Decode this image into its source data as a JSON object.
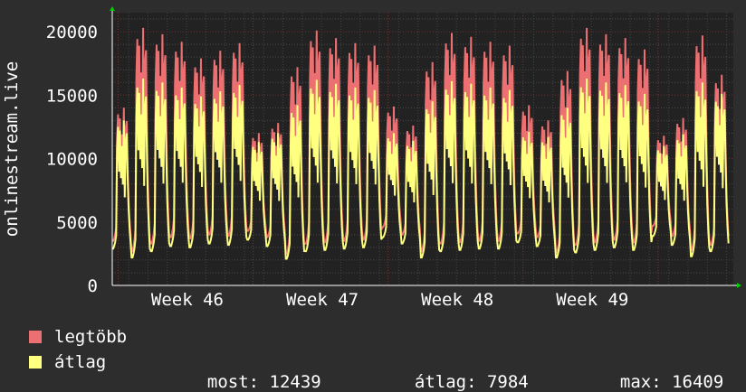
{
  "chart_data": {
    "type": "line",
    "ylabel": "onlinestream.live",
    "y_ticks": [
      0,
      5000,
      10000,
      15000,
      20000
    ],
    "ylim": [
      0,
      21500
    ],
    "x_tick_labels": [
      "Week 46",
      "Week 47",
      "Week 48",
      "Week 49"
    ],
    "grid": true,
    "colors": {
      "background": "#2d2d2d",
      "plot": "#222222",
      "max_series": "#ec6f71",
      "avg_series": "#ffff80",
      "axis_arrow": "#00cc00"
    },
    "series": [
      {
        "name": "legtöbb",
        "color": "#ec6f71",
        "days": [
          {
            "night": 3500,
            "peak": 14000
          },
          {
            "night": 2700,
            "peak": 20300
          },
          {
            "night": 3300,
            "peak": 19800
          },
          {
            "night": 3800,
            "peak": 19200
          },
          {
            "night": 3700,
            "peak": 17900
          },
          {
            "night": 4000,
            "peak": 18500
          },
          {
            "night": 3900,
            "peak": 19100
          },
          {
            "night": 4300,
            "peak": 12000
          },
          {
            "night": 3800,
            "peak": 12800
          },
          {
            "night": 2500,
            "peak": 17200
          },
          {
            "night": 3300,
            "peak": 20100
          },
          {
            "night": 3400,
            "peak": 19500
          },
          {
            "night": 3500,
            "peak": 19100
          },
          {
            "night": 3600,
            "peak": 18900
          },
          {
            "night": 4600,
            "peak": 14100
          },
          {
            "night": 4000,
            "peak": 12600
          },
          {
            "night": 2700,
            "peak": 17600
          },
          {
            "night": 3300,
            "peak": 19900
          },
          {
            "night": 3400,
            "peak": 19600
          },
          {
            "night": 3500,
            "peak": 19200
          },
          {
            "night": 3500,
            "peak": 18900
          },
          {
            "night": 4100,
            "peak": 14200
          },
          {
            "night": 3800,
            "peak": 13000
          },
          {
            "night": 2600,
            "peak": 16900
          },
          {
            "night": 3200,
            "peak": 20300
          },
          {
            "night": 3400,
            "peak": 19800
          },
          {
            "night": 3600,
            "peak": 19500
          },
          {
            "night": 3400,
            "peak": 18600
          },
          {
            "night": 4700,
            "peak": 11800
          },
          {
            "night": 3900,
            "peak": 13200
          },
          {
            "night": 2800,
            "peak": 19700
          },
          {
            "night": 3200,
            "peak": 16600
          }
        ]
      },
      {
        "name": "átlag",
        "color": "#ffff80",
        "days": [
          {
            "night": 2900,
            "peak": 13000
          },
          {
            "night": 2200,
            "peak": 16300
          },
          {
            "night": 2700,
            "peak": 16000
          },
          {
            "night": 3100,
            "peak": 15600
          },
          {
            "night": 3000,
            "peak": 14900
          },
          {
            "night": 3300,
            "peak": 15300
          },
          {
            "night": 3200,
            "peak": 15800
          },
          {
            "night": 3600,
            "peak": 11300
          },
          {
            "night": 3100,
            "peak": 12000
          },
          {
            "night": 2100,
            "peak": 14200
          },
          {
            "night": 2700,
            "peak": 16200
          },
          {
            "night": 2800,
            "peak": 15900
          },
          {
            "night": 2900,
            "peak": 15600
          },
          {
            "night": 3000,
            "peak": 15400
          },
          {
            "night": 3800,
            "peak": 12000
          },
          {
            "night": 3300,
            "peak": 11400
          },
          {
            "night": 2200,
            "peak": 14500
          },
          {
            "night": 2700,
            "peak": 16100
          },
          {
            "night": 2800,
            "peak": 15900
          },
          {
            "night": 2900,
            "peak": 15600
          },
          {
            "night": 2900,
            "peak": 15400
          },
          {
            "night": 3400,
            "peak": 12100
          },
          {
            "night": 3100,
            "peak": 11700
          },
          {
            "night": 2200,
            "peak": 14000
          },
          {
            "night": 2600,
            "peak": 16300
          },
          {
            "night": 2800,
            "peak": 16000
          },
          {
            "night": 3000,
            "peak": 15800
          },
          {
            "night": 2800,
            "peak": 15100
          },
          {
            "night": 3900,
            "peak": 11000
          },
          {
            "night": 3200,
            "peak": 11900
          },
          {
            "night": 2300,
            "peak": 16000
          },
          {
            "night": 2700,
            "peak": 15100
          }
        ]
      }
    ],
    "stats": {
      "most_label": "most:",
      "most_value": "12439",
      "avg_label": "átlag:",
      "avg_value": "7984",
      "max_label": "max:",
      "max_value": "16409"
    }
  }
}
